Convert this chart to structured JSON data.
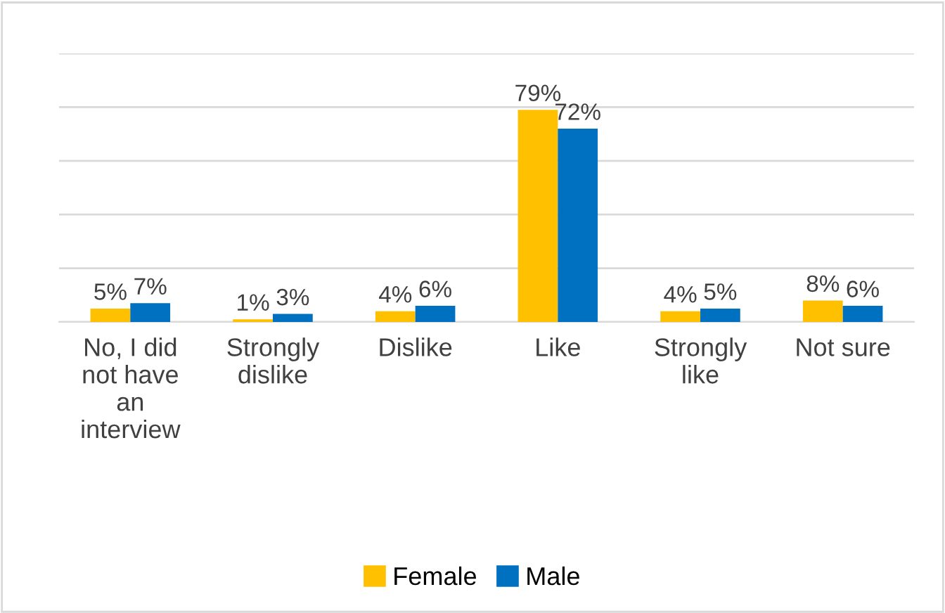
{
  "chart_data": {
    "type": "bar",
    "categories": [
      "No, I did not have an interview",
      "Strongly dislike",
      "Dislike",
      "Like",
      "Strongly like",
      "Not sure"
    ],
    "series": [
      {
        "name": "Female",
        "color": "#ffc000",
        "values": [
          5,
          1,
          4,
          79,
          4,
          8
        ],
        "value_labels": [
          "5%",
          "1%",
          "4%",
          "79%",
          "4%",
          "8%"
        ]
      },
      {
        "name": "Male",
        "color": "#0070c0",
        "values": [
          7,
          3,
          6,
          72,
          5,
          6
        ],
        "value_labels": [
          "7%",
          "3%",
          "6%",
          "72%",
          "5%",
          "6%"
        ]
      }
    ],
    "ylim": [
      0,
      100
    ],
    "yticks": [
      {
        "value": 0,
        "label": null
      },
      {
        "value": 20,
        "label": null
      },
      {
        "value": 40,
        "label": null
      },
      {
        "value": 60,
        "label": null
      },
      {
        "value": 80,
        "label": null
      },
      {
        "value": 100,
        "label": null
      }
    ],
    "grid": "y",
    "legend": "bottom"
  }
}
